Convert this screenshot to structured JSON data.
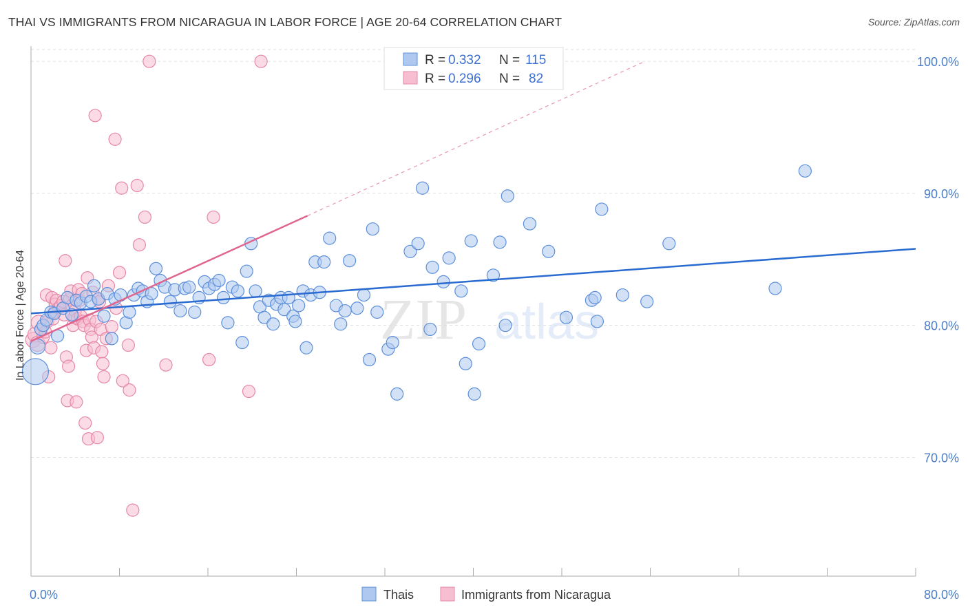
{
  "title": "THAI VS IMMIGRANTS FROM NICARAGUA IN LABOR FORCE | AGE 20-64 CORRELATION CHART",
  "source": "Source: ZipAtlas.com",
  "watermark": {
    "zip": "ZIP",
    "atlas": "atlas"
  },
  "legend_box": {
    "rows": [
      {
        "r_label": "R = ",
        "r_value": "0.332",
        "n_label": "N = ",
        "n_value": "115"
      },
      {
        "r_label": "R = ",
        "r_value": "0.296",
        "n_label": "N = ",
        "n_value": "82"
      }
    ]
  },
  "colors": {
    "thais_fill": "#aec8ef",
    "thais_stroke": "#5b8fdb",
    "thais_line": "#2a6bd1",
    "nic_fill": "#f7bdd0",
    "nic_stroke": "#e687a8",
    "nic_line": "#e0668f",
    "grid": "#dddddd",
    "tick_text": "#4a7cc7"
  },
  "chart_data": {
    "type": "scatter",
    "title": "THAI VS IMMIGRANTS FROM NICARAGUA IN LABOR FORCE | AGE 20-64 CORRELATION CHART",
    "xlabel": "",
    "ylabel": "In Labor Force | Age 20-64",
    "xlim": [
      0,
      80
    ],
    "ylim": [
      61,
      101
    ],
    "x_tick_labels": [
      "0.0%",
      "80.0%"
    ],
    "y_ticks": [
      70,
      80,
      90,
      100
    ],
    "y_tick_labels": [
      "70.0%",
      "80.0%",
      "90.0%",
      "100.0%"
    ],
    "grid": true,
    "legend_position": "top-center",
    "series": [
      {
        "name": "Thais",
        "r": 0.332,
        "n": 115,
        "trend": {
          "x": [
            0,
            80
          ],
          "y": [
            80.9,
            85.8
          ]
        },
        "points": [
          [
            0.4,
            76.5
          ],
          [
            0.6,
            78.4
          ],
          [
            0.9,
            79.7
          ],
          [
            1.1,
            80.0
          ],
          [
            1.4,
            80.4
          ],
          [
            1.8,
            81.0
          ],
          [
            2.1,
            80.9
          ],
          [
            2.4,
            79.2
          ],
          [
            2.9,
            81.3
          ],
          [
            3.3,
            82.1
          ],
          [
            3.7,
            80.8
          ],
          [
            4.1,
            81.9
          ],
          [
            4.5,
            81.7
          ],
          [
            5.0,
            82.2
          ],
          [
            5.4,
            81.8
          ],
          [
            5.7,
            83.0
          ],
          [
            6.1,
            82.0
          ],
          [
            6.6,
            80.7
          ],
          [
            6.9,
            82.4
          ],
          [
            7.3,
            79.0
          ],
          [
            7.6,
            82.0
          ],
          [
            8.1,
            82.3
          ],
          [
            8.6,
            80.2
          ],
          [
            8.9,
            81.0
          ],
          [
            9.3,
            82.3
          ],
          [
            9.7,
            82.8
          ],
          [
            10.1,
            82.6
          ],
          [
            10.5,
            81.8
          ],
          [
            10.9,
            82.4
          ],
          [
            11.3,
            84.3
          ],
          [
            11.7,
            83.4
          ],
          [
            12.1,
            82.9
          ],
          [
            12.6,
            81.8
          ],
          [
            13.0,
            82.7
          ],
          [
            13.5,
            81.1
          ],
          [
            13.9,
            82.8
          ],
          [
            14.3,
            82.9
          ],
          [
            14.8,
            81.0
          ],
          [
            15.2,
            82.1
          ],
          [
            15.7,
            83.3
          ],
          [
            16.1,
            82.8
          ],
          [
            16.6,
            83.1
          ],
          [
            17.0,
            83.4
          ],
          [
            17.4,
            82.1
          ],
          [
            17.8,
            80.2
          ],
          [
            18.2,
            82.9
          ],
          [
            18.7,
            82.6
          ],
          [
            19.1,
            78.7
          ],
          [
            19.5,
            84.1
          ],
          [
            19.9,
            86.2
          ],
          [
            20.3,
            82.6
          ],
          [
            20.7,
            81.4
          ],
          [
            21.1,
            80.6
          ],
          [
            21.5,
            81.9
          ],
          [
            21.9,
            80.1
          ],
          [
            22.2,
            81.6
          ],
          [
            22.6,
            82.1
          ],
          [
            22.9,
            81.2
          ],
          [
            23.3,
            82.1
          ],
          [
            23.7,
            80.7
          ],
          [
            23.9,
            80.3
          ],
          [
            24.2,
            81.5
          ],
          [
            24.6,
            82.6
          ],
          [
            24.9,
            78.3
          ],
          [
            25.3,
            82.3
          ],
          [
            25.7,
            84.8
          ],
          [
            26.1,
            82.5
          ],
          [
            26.5,
            84.8
          ],
          [
            27.0,
            86.6
          ],
          [
            27.6,
            81.5
          ],
          [
            28.0,
            80.1
          ],
          [
            28.4,
            81.1
          ],
          [
            28.8,
            84.9
          ],
          [
            29.5,
            81.3
          ],
          [
            30.1,
            82.3
          ],
          [
            30.6,
            77.4
          ],
          [
            30.9,
            87.3
          ],
          [
            31.3,
            81.0
          ],
          [
            32.3,
            78.2
          ],
          [
            32.7,
            78.7
          ],
          [
            33.1,
            74.8
          ],
          [
            34.3,
            85.6
          ],
          [
            35.0,
            86.2
          ],
          [
            35.4,
            90.4
          ],
          [
            36.1,
            79.7
          ],
          [
            36.3,
            84.4
          ],
          [
            37.3,
            83.3
          ],
          [
            37.8,
            85.1
          ],
          [
            38.9,
            82.6
          ],
          [
            39.3,
            77.1
          ],
          [
            39.8,
            86.4
          ],
          [
            40.1,
            74.8
          ],
          [
            40.5,
            78.6
          ],
          [
            41.8,
            83.8
          ],
          [
            42.4,
            86.3
          ],
          [
            42.9,
            80.0
          ],
          [
            43.1,
            89.8
          ],
          [
            45.1,
            87.7
          ],
          [
            46.8,
            85.6
          ],
          [
            48.4,
            80.6
          ],
          [
            50.7,
            81.9
          ],
          [
            51.0,
            82.1
          ],
          [
            51.2,
            80.3
          ],
          [
            51.6,
            88.8
          ],
          [
            53.5,
            82.3
          ],
          [
            55.7,
            81.8
          ],
          [
            57.7,
            86.2
          ],
          [
            67.3,
            82.8
          ],
          [
            70.0,
            91.7
          ]
        ]
      },
      {
        "name": "Immigrants from Nicaragua",
        "r": 0.296,
        "n": 82,
        "trend": {
          "x": [
            0,
            25
          ],
          "y": [
            78.8,
            88.3
          ]
        },
        "trend_dashed": {
          "x": [
            25,
            55.5
          ],
          "y": [
            88.3,
            100.0
          ]
        },
        "points": [
          [
            0.2,
            78.9
          ],
          [
            0.4,
            79.3
          ],
          [
            0.6,
            78.6
          ],
          [
            0.7,
            80.2
          ],
          [
            0.9,
            79.7
          ],
          [
            1.1,
            79.1
          ],
          [
            1.3,
            79.5
          ],
          [
            1.4,
            82.3
          ],
          [
            1.5,
            80.3
          ],
          [
            1.6,
            76.1
          ],
          [
            1.8,
            78.3
          ],
          [
            1.9,
            82.1
          ],
          [
            2.0,
            80.5
          ],
          [
            2.1,
            81.0
          ],
          [
            2.2,
            81.6
          ],
          [
            2.3,
            81.9
          ],
          [
            2.5,
            81.3
          ],
          [
            2.7,
            81.5
          ],
          [
            2.9,
            81.8
          ],
          [
            3.0,
            80.8
          ],
          [
            3.1,
            84.9
          ],
          [
            3.2,
            77.6
          ],
          [
            3.3,
            74.3
          ],
          [
            3.4,
            76.9
          ],
          [
            3.5,
            82.0
          ],
          [
            3.6,
            82.6
          ],
          [
            3.7,
            81.5
          ],
          [
            3.8,
            80.0
          ],
          [
            3.9,
            80.6
          ],
          [
            4.0,
            81.1
          ],
          [
            4.1,
            74.2
          ],
          [
            4.2,
            80.5
          ],
          [
            4.3,
            82.7
          ],
          [
            4.4,
            81.9
          ],
          [
            4.5,
            80.7
          ],
          [
            4.6,
            82.4
          ],
          [
            4.7,
            80.3
          ],
          [
            4.8,
            80.0
          ],
          [
            4.9,
            72.6
          ],
          [
            5.0,
            78.1
          ],
          [
            5.1,
            83.6
          ],
          [
            5.2,
            71.4
          ],
          [
            5.3,
            80.4
          ],
          [
            5.4,
            79.7
          ],
          [
            5.5,
            79.1
          ],
          [
            5.6,
            82.5
          ],
          [
            5.7,
            78.3
          ],
          [
            5.8,
            95.9
          ],
          [
            5.9,
            80.3
          ],
          [
            6.0,
            71.5
          ],
          [
            6.1,
            82.0
          ],
          [
            6.2,
            81.8
          ],
          [
            6.3,
            79.7
          ],
          [
            6.4,
            78.0
          ],
          [
            6.5,
            77.1
          ],
          [
            6.6,
            76.1
          ],
          [
            6.8,
            79.0
          ],
          [
            7.0,
            83.0
          ],
          [
            7.3,
            79.9
          ],
          [
            7.6,
            94.1
          ],
          [
            7.7,
            81.3
          ],
          [
            8.0,
            84.0
          ],
          [
            8.2,
            90.4
          ],
          [
            8.3,
            75.8
          ],
          [
            8.8,
            78.5
          ],
          [
            8.9,
            75.1
          ],
          [
            9.2,
            66.0
          ],
          [
            9.6,
            90.6
          ],
          [
            9.8,
            86.1
          ],
          [
            10.3,
            88.2
          ],
          [
            10.7,
            100.0
          ],
          [
            12.2,
            77.0
          ],
          [
            16.1,
            77.4
          ],
          [
            16.5,
            88.2
          ],
          [
            19.7,
            75.0
          ],
          [
            20.8,
            100.0
          ]
        ]
      }
    ]
  }
}
